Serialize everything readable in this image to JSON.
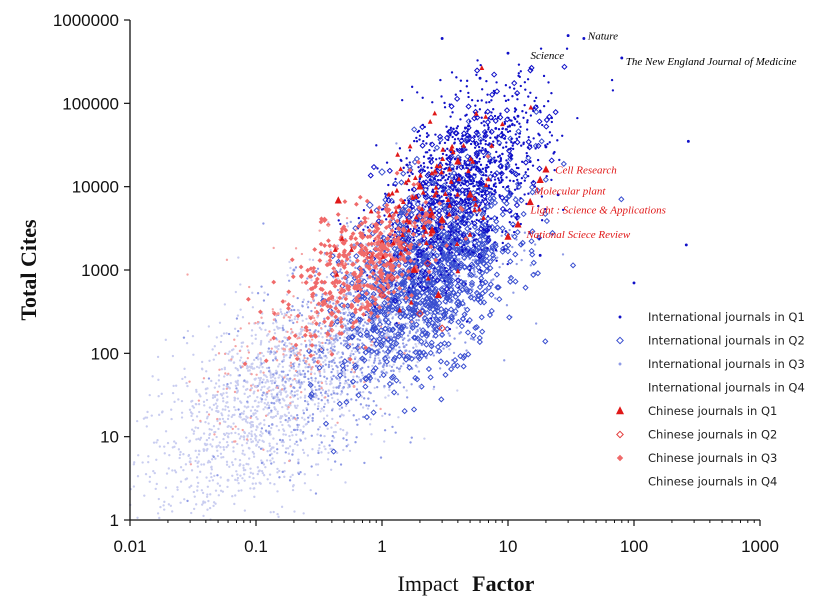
{
  "chart_data": {
    "type": "scatter",
    "xlabel_part1": "Impact",
    "xlabel_part2": "Factor",
    "ylabel": "Total Cites",
    "x_scale": "log",
    "y_scale": "log",
    "xlim": [
      0.01,
      1000
    ],
    "ylim": [
      1,
      1000000
    ],
    "x_ticks": [
      0.01,
      0.1,
      1,
      10,
      100,
      1000
    ],
    "x_tick_labels": [
      "0.01",
      "0.1",
      "1",
      "10",
      "100",
      "1000"
    ],
    "y_ticks": [
      1,
      10,
      100,
      1000,
      10000,
      100000,
      1000000
    ],
    "y_tick_labels": [
      "1",
      "10",
      "100",
      "1000",
      "10000",
      "100000",
      "1000000"
    ],
    "grid": false,
    "legend_position": "lower-right",
    "series": [
      {
        "name": "International journals in Q1",
        "color": "#1010c8",
        "marker": "dot",
        "points": [
          [
            30,
            650000
          ],
          [
            40,
            600000
          ],
          [
            80,
            350000
          ],
          [
            12,
            70000
          ],
          [
            20,
            30000
          ],
          [
            5,
            40000
          ],
          [
            8,
            50000
          ],
          [
            15,
            20000
          ],
          [
            25,
            8000
          ],
          [
            270,
            35000
          ],
          [
            260,
            2000
          ],
          [
            100,
            700
          ],
          [
            3,
            600000
          ],
          [
            6,
            200000
          ],
          [
            10,
            400000
          ],
          [
            4,
            9000
          ],
          [
            7,
            3000
          ],
          [
            18,
            1500
          ],
          [
            2.5,
            3000
          ],
          [
            9,
            12000
          ]
        ]
      },
      {
        "name": "International journals in Q2",
        "color": "#3a4fd0",
        "marker": "open-diamond",
        "points": [
          [
            1.5,
            5000
          ],
          [
            2,
            2000
          ],
          [
            3,
            1000
          ],
          [
            1,
            15000
          ],
          [
            2.5,
            600
          ],
          [
            4,
            400
          ],
          [
            1.2,
            800
          ],
          [
            3.5,
            3500
          ],
          [
            0.8,
            6000
          ],
          [
            5,
            1500
          ]
        ]
      },
      {
        "name": "International journals in Q3",
        "color": "#8f9be6",
        "marker": "dot",
        "points": [
          [
            0.5,
            300
          ],
          [
            0.8,
            150
          ],
          [
            0.3,
            500
          ],
          [
            1,
            60
          ],
          [
            0.6,
            2000
          ],
          [
            0.4,
            80
          ],
          [
            1.5,
            120
          ],
          [
            0.2,
            1000
          ],
          [
            2,
            40
          ],
          [
            0.7,
            700
          ]
        ]
      },
      {
        "name": "International journals in Q4",
        "color": "#c9cdf0",
        "marker": "dot",
        "points": [
          [
            0.05,
            20
          ],
          [
            0.1,
            40
          ],
          [
            0.03,
            5
          ],
          [
            0.2,
            100
          ],
          [
            0.08,
            10
          ],
          [
            0.15,
            200
          ],
          [
            0.3,
            30
          ],
          [
            0.04,
            8
          ],
          [
            0.06,
            3
          ],
          [
            0.5,
            60
          ]
        ]
      },
      {
        "name": "Chinese journals in Q1",
        "color": "#e01818",
        "marker": "triangle",
        "points": [
          [
            20,
            16000
          ],
          [
            18,
            12000
          ],
          [
            15,
            6500
          ],
          [
            10,
            2500
          ],
          [
            0.45,
            6800
          ],
          [
            5,
            8000
          ],
          [
            3,
            4000
          ],
          [
            2,
            10000
          ],
          [
            2.5,
            3000
          ],
          [
            12,
            3500
          ],
          [
            4,
            20000
          ],
          [
            1.8,
            1000
          ],
          [
            2.8,
            500
          ]
        ]
      },
      {
        "name": "Chinese journals in Q2",
        "color": "#e43c3c",
        "marker": "open-diamond",
        "points": [
          [
            1,
            500
          ],
          [
            1.5,
            2000
          ],
          [
            2,
            300
          ],
          [
            0.8,
            1500
          ],
          [
            3,
            200
          ],
          [
            1.2,
            800
          ],
          [
            2.3,
            1200
          ]
        ]
      },
      {
        "name": "Chinese journals in Q3",
        "color": "#f06a6a",
        "marker": "diamond",
        "points": [
          [
            0.5,
            1500
          ],
          [
            0.7,
            2500
          ],
          [
            0.3,
            700
          ],
          [
            0.6,
            900
          ],
          [
            0.9,
            3500
          ],
          [
            1,
            2000
          ],
          [
            0.4,
            300
          ],
          [
            0.35,
            4000
          ]
        ]
      },
      {
        "name": "Chinese journals in Q4",
        "color": "#f5a3a3",
        "marker": "dot",
        "points": [
          [
            0.25,
            80
          ],
          [
            0.4,
            150
          ],
          [
            0.6,
            40
          ],
          [
            0.15,
            300
          ],
          [
            0.5,
            500
          ]
        ]
      }
    ],
    "annotations": [
      {
        "text": "Nature",
        "x": 40,
        "y": 650000,
        "color": "#000000",
        "anchor": "start"
      },
      {
        "text": "Science",
        "x": 30,
        "y": 380000,
        "color": "#000000",
        "anchor": "end"
      },
      {
        "text": "The New England Journal of Medicine",
        "x": 80,
        "y": 320000,
        "color": "#000000",
        "anchor": "start"
      },
      {
        "text": "Cell Research",
        "x": 22,
        "y": 16000,
        "color": "#e01818",
        "anchor": "start"
      },
      {
        "text": "Molecular plant",
        "x": 15,
        "y": 9000,
        "color": "#e01818",
        "anchor": "start"
      },
      {
        "text": "Light : Science & Applications",
        "x": 14,
        "y": 5300,
        "color": "#e01818",
        "anchor": "start"
      },
      {
        "text": "National Sciece Review",
        "x": 13,
        "y": 2700,
        "color": "#e01818",
        "anchor": "start"
      }
    ]
  }
}
